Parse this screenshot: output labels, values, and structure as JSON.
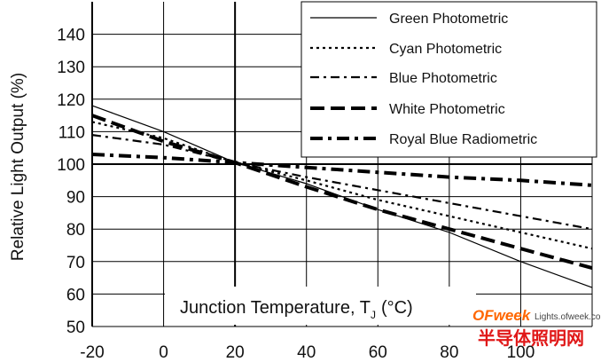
{
  "chart_data": {
    "type": "line",
    "title": "",
    "xlabel_main": "Junction Temperature, T",
    "xlabel_sub": "J",
    "xlabel_unit": "(°C)",
    "ylabel": "Relative Light Output (%)",
    "xlim": [
      -20,
      120
    ],
    "ylim": [
      50,
      150
    ],
    "x_ticks": [
      -20,
      0,
      20,
      40,
      60,
      80,
      100
    ],
    "y_ticks": [
      50,
      60,
      70,
      80,
      90,
      100,
      110,
      120,
      130,
      140
    ],
    "grid": true,
    "legend_position": "top-right",
    "series": [
      {
        "name": "Green Photometric",
        "style": "solid",
        "x": [
          -20,
          0,
          20,
          40,
          60,
          80,
          100,
          120
        ],
        "y": [
          118,
          110,
          100.5,
          94,
          86,
          79,
          70,
          62
        ]
      },
      {
        "name": "Cyan Photometric",
        "style": "dot",
        "x": [
          -20,
          0,
          20,
          40,
          60,
          80,
          100,
          120
        ],
        "y": [
          113,
          108,
          100.5,
          95,
          89,
          84,
          79,
          74
        ]
      },
      {
        "name": "Blue Photometric",
        "style": "dashdot",
        "x": [
          -20,
          0,
          20,
          40,
          60,
          80,
          100,
          120
        ],
        "y": [
          109,
          106,
          100.5,
          96,
          92,
          88,
          84,
          80
        ]
      },
      {
        "name": "White Photometric",
        "style": "dash",
        "x": [
          -20,
          0,
          20,
          40,
          60,
          80,
          100,
          120
        ],
        "y": [
          115,
          107,
          100.5,
          93,
          86,
          80,
          74,
          68
        ]
      },
      {
        "name": "Royal Blue Radiometric",
        "style": "longdashdot",
        "x": [
          -20,
          0,
          20,
          40,
          60,
          80,
          100,
          120
        ],
        "y": [
          103,
          102,
          100.5,
          99,
          97.5,
          96,
          95,
          93.5
        ]
      }
    ]
  },
  "watermark": {
    "brand": "OFweek",
    "site": "Lights.ofweek.com",
    "cn": "半导体照明网"
  },
  "colors": {
    "line": "#000000",
    "grid": "#000000",
    "brand_orange": "#ff6600",
    "brand_red": "#e01818"
  }
}
